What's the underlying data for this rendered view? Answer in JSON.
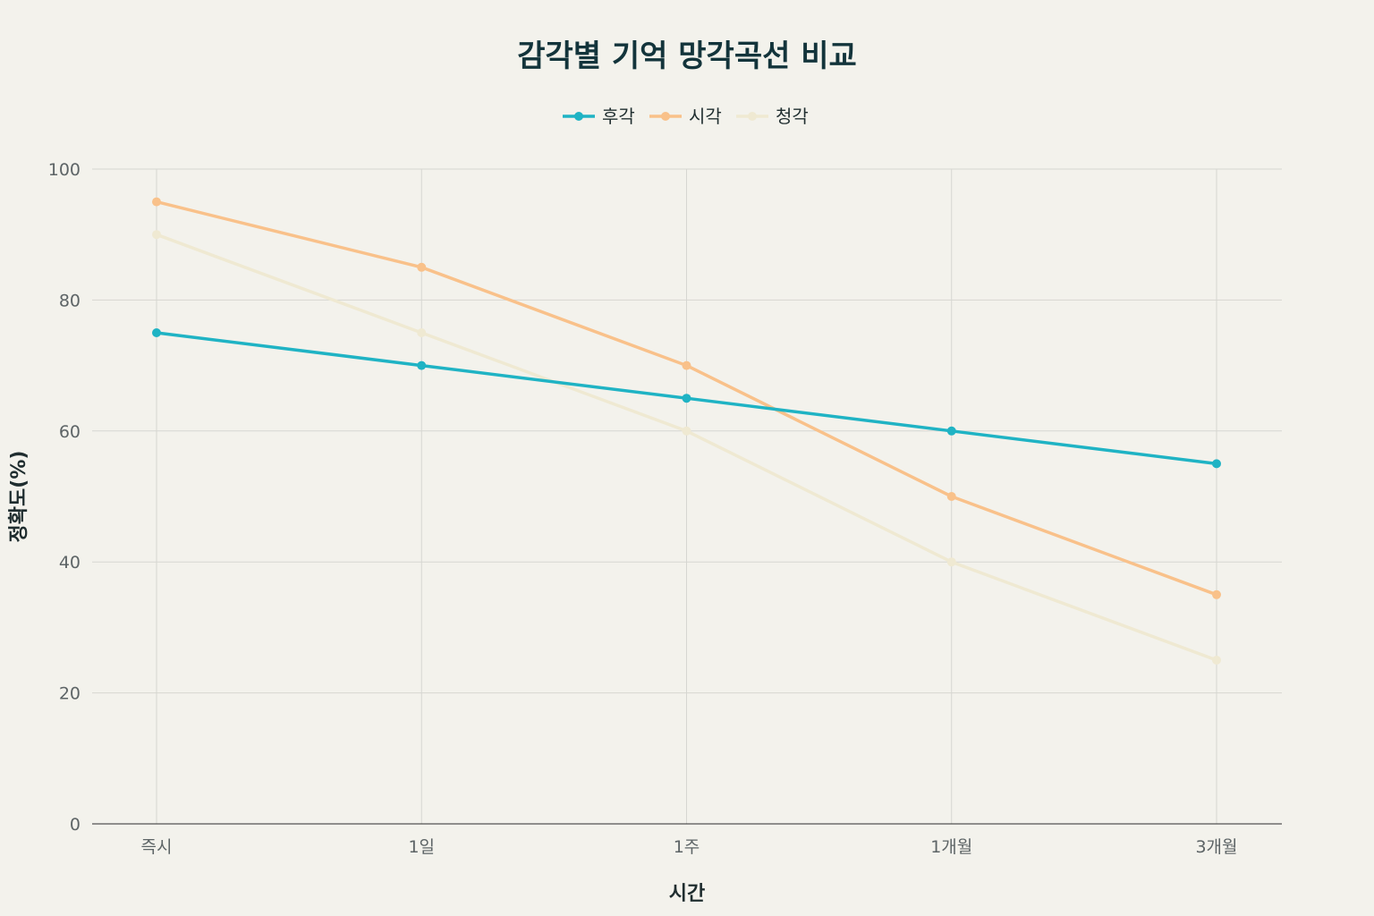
{
  "chart_data": {
    "type": "line",
    "title": "감각별 기억 망각곡선 비교",
    "xlabel": "시간",
    "ylabel": "정확도(%)",
    "categories": [
      "즉시",
      "1일",
      "1주",
      "1개월",
      "3개월"
    ],
    "ylim": [
      0,
      100
    ],
    "yticks": [
      0,
      20,
      40,
      60,
      80,
      100
    ],
    "grid": true,
    "legend_position": "top-center",
    "series": [
      {
        "name": "후각",
        "color": "#1fb3c4",
        "values": [
          75,
          70,
          65,
          60,
          55
        ]
      },
      {
        "name": "시각",
        "color": "#f9c18a",
        "values": [
          95,
          85,
          70,
          50,
          35
        ]
      },
      {
        "name": "청각",
        "color": "#efe9d2",
        "values": [
          90,
          75,
          60,
          40,
          25
        ]
      }
    ]
  }
}
